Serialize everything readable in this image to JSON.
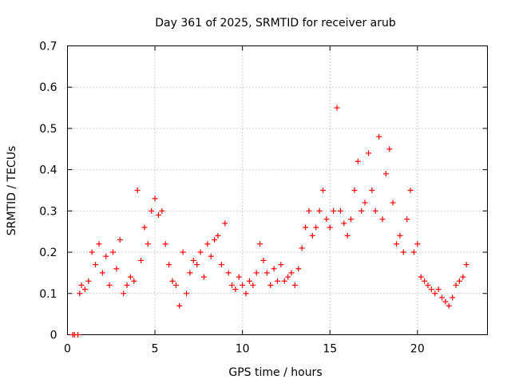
{
  "chart_data": {
    "type": "scatter",
    "title": "Day 361 of 2025, SRMTID for receiver arub",
    "xlabel": "GPS time / hours",
    "ylabel": "SRMTID / TECUs",
    "xlim": [
      0,
      24
    ],
    "ylim": [
      0,
      0.7
    ],
    "xticks": [
      0,
      5,
      10,
      15,
      20
    ],
    "yticks": [
      0,
      0.1,
      0.2,
      0.3,
      0.4,
      0.5,
      0.6,
      0.7
    ],
    "grid": true,
    "marker": "+",
    "series_color": "#ff0000",
    "series": [
      {
        "name": "SRMTID",
        "x": [
          0.3,
          0.4,
          0.6,
          0.7,
          0.8,
          1.0,
          1.2,
          1.4,
          1.6,
          1.8,
          2.0,
          2.2,
          2.4,
          2.6,
          2.8,
          3.0,
          3.2,
          3.4,
          3.6,
          3.8,
          4.0,
          4.2,
          4.4,
          4.6,
          4.8,
          5.0,
          5.2,
          5.4,
          5.6,
          5.8,
          6.0,
          6.2,
          6.4,
          6.6,
          6.8,
          7.0,
          7.2,
          7.4,
          7.6,
          7.8,
          8.0,
          8.2,
          8.4,
          8.6,
          8.8,
          9.0,
          9.2,
          9.4,
          9.6,
          9.8,
          10.0,
          10.2,
          10.4,
          10.6,
          10.8,
          11.0,
          11.2,
          11.4,
          11.6,
          11.8,
          12.0,
          12.2,
          12.4,
          12.6,
          12.8,
          13.0,
          13.2,
          13.4,
          13.6,
          13.8,
          14.0,
          14.2,
          14.4,
          14.6,
          14.8,
          15.0,
          15.2,
          15.4,
          15.6,
          15.8,
          16.0,
          16.2,
          16.4,
          16.6,
          16.8,
          17.0,
          17.2,
          17.4,
          17.6,
          17.8,
          18.0,
          18.2,
          18.4,
          18.6,
          18.8,
          19.0,
          19.2,
          19.4,
          19.6,
          19.8,
          20.0,
          20.2,
          20.4,
          20.6,
          20.8,
          21.0,
          21.2,
          21.4,
          21.6,
          21.8,
          22.0,
          22.2,
          22.4,
          22.6,
          22.8
        ],
        "y": [
          0.0,
          0.0,
          0.0,
          0.1,
          0.12,
          0.11,
          0.13,
          0.2,
          0.17,
          0.22,
          0.15,
          0.19,
          0.12,
          0.2,
          0.16,
          0.23,
          0.1,
          0.12,
          0.14,
          0.13,
          0.35,
          0.18,
          0.26,
          0.22,
          0.3,
          0.33,
          0.29,
          0.3,
          0.22,
          0.17,
          0.13,
          0.12,
          0.07,
          0.2,
          0.1,
          0.15,
          0.18,
          0.17,
          0.2,
          0.14,
          0.22,
          0.19,
          0.23,
          0.24,
          0.17,
          0.27,
          0.15,
          0.12,
          0.11,
          0.14,
          0.12,
          0.1,
          0.13,
          0.12,
          0.15,
          0.22,
          0.18,
          0.15,
          0.12,
          0.16,
          0.13,
          0.17,
          0.13,
          0.14,
          0.15,
          0.12,
          0.16,
          0.21,
          0.26,
          0.3,
          0.24,
          0.26,
          0.3,
          0.35,
          0.28,
          0.26,
          0.3,
          0.55,
          0.3,
          0.27,
          0.24,
          0.28,
          0.35,
          0.42,
          0.3,
          0.32,
          0.44,
          0.35,
          0.3,
          0.48,
          0.28,
          0.39,
          0.45,
          0.32,
          0.22,
          0.24,
          0.2,
          0.28,
          0.35,
          0.2,
          0.22,
          0.14,
          0.13,
          0.12,
          0.11,
          0.1,
          0.11,
          0.09,
          0.08,
          0.07,
          0.09,
          0.12,
          0.13,
          0.14,
          0.17
        ]
      }
    ]
  }
}
